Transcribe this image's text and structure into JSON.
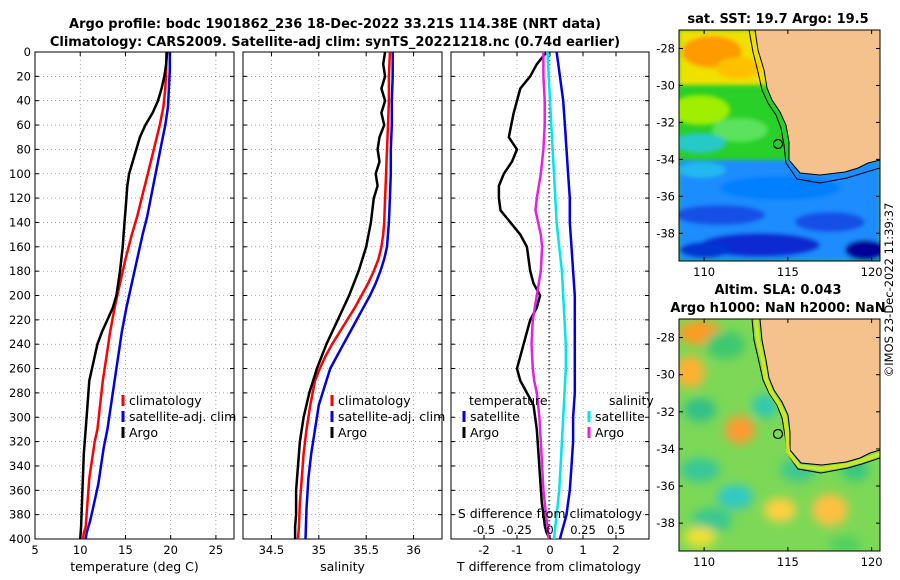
{
  "title_line1": "Argo profile: bodc 1901862_236 18-Dec-2022 33.21S 114.38E (NRT data)",
  "title_line2": "Climatology: CARS2009. Satellite-adj clim: synTS_20221218.nc (0.74d earlier)",
  "depth_ticks": [
    0,
    20,
    40,
    60,
    80,
    100,
    120,
    140,
    160,
    180,
    200,
    220,
    240,
    260,
    280,
    300,
    320,
    340,
    360,
    380,
    400
  ],
  "colors": {
    "argo": "#000000",
    "clim": "#ff0000",
    "sat": "#0000e6",
    "sat_s": "#00e5ee",
    "argo_s": "#e61ee6"
  },
  "chart_data": [
    {
      "type": "line",
      "name": "temperature",
      "xlabel": "temperature (deg C)",
      "xlim": [
        5,
        27
      ],
      "xticks": [
        5,
        10,
        15,
        20,
        25
      ],
      "ylim": [
        400,
        0
      ],
      "legend": [
        "climatology",
        "satellite-adj. clim",
        "Argo"
      ],
      "series": [
        {
          "name": "climatology",
          "color": "#ff0000",
          "x": [
            19.5,
            19.5,
            19.4,
            19.2,
            18.8,
            18.3,
            17.8,
            17.3,
            16.8,
            16.3,
            15.7,
            15.0,
            14.4,
            13.8,
            13.3,
            12.9,
            12.5,
            12.2,
            11.9,
            11.6,
            11.4,
            11.2,
            11.0,
            10.9,
            10.8,
            10.7,
            10.6,
            10.4,
            10.3
          ],
          "y": [
            0,
            15,
            30,
            45,
            60,
            75,
            90,
            105,
            120,
            135,
            150,
            170,
            190,
            210,
            230,
            250,
            270,
            290,
            310,
            320,
            330,
            340,
            350,
            360,
            370,
            380,
            390,
            395,
            400
          ]
        },
        {
          "name": "satellite-adj. clim",
          "color": "#0000e6",
          "x": [
            19.9,
            19.9,
            19.8,
            19.7,
            19.4,
            19.0,
            18.6,
            18.2,
            17.8,
            17.4,
            16.9,
            16.3,
            15.7,
            15.1,
            14.6,
            14.2,
            13.8,
            13.4,
            13.0,
            12.6,
            12.3,
            12.0,
            11.7,
            11.4,
            11.1,
            10.9,
            10.7,
            10.6
          ],
          "y": [
            0,
            15,
            30,
            45,
            60,
            75,
            90,
            105,
            120,
            135,
            150,
            170,
            190,
            210,
            230,
            250,
            270,
            290,
            310,
            325,
            340,
            355,
            365,
            375,
            385,
            390,
            395,
            400
          ]
        },
        {
          "name": "Argo",
          "color": "#000000",
          "x": [
            19.6,
            19.5,
            19.3,
            19.0,
            18.6,
            18.0,
            17.2,
            16.6,
            16.2,
            15.8,
            15.4,
            15.2,
            15.1,
            15.0,
            14.9,
            14.7,
            14.4,
            14.0,
            13.6,
            13.0,
            12.4,
            11.9,
            11.6,
            11.3,
            11.0,
            10.8,
            10.6,
            10.4,
            10.3,
            10.2,
            10.1,
            10.0
          ],
          "y": [
            0,
            10,
            20,
            30,
            40,
            50,
            60,
            70,
            80,
            90,
            100,
            110,
            120,
            130,
            140,
            160,
            180,
            200,
            210,
            220,
            230,
            240,
            250,
            260,
            270,
            290,
            310,
            330,
            350,
            370,
            390,
            400
          ]
        }
      ]
    },
    {
      "type": "line",
      "name": "salinity",
      "xlabel": "salinity",
      "xlim": [
        34.2,
        36.3
      ],
      "xticks": [
        34.5,
        35,
        35.5,
        36
      ],
      "xtick_labels": [
        "34.5",
        "35",
        "35.5",
        "36"
      ],
      "ylim": [
        400,
        0
      ],
      "legend": [
        "climatology",
        "satellite-adj. clim",
        "Argo"
      ],
      "series": [
        {
          "name": "climatology",
          "color": "#ff0000",
          "x": [
            35.75,
            35.74,
            35.74,
            35.73,
            35.72,
            35.71,
            35.7,
            35.69,
            35.68,
            35.66,
            35.63,
            35.58,
            35.52,
            35.45,
            35.38,
            35.3,
            35.22,
            35.14,
            35.07,
            35.01,
            34.96,
            34.91,
            34.87,
            34.84,
            34.82,
            34.8,
            34.79,
            34.78
          ],
          "y": [
            0,
            20,
            40,
            60,
            80,
            100,
            120,
            140,
            150,
            160,
            170,
            180,
            190,
            200,
            210,
            220,
            230,
            240,
            250,
            260,
            270,
            290,
            310,
            330,
            350,
            370,
            390,
            400
          ]
        },
        {
          "name": "satellite-adj. clim",
          "color": "#0000e6",
          "x": [
            35.78,
            35.78,
            35.77,
            35.77,
            35.76,
            35.76,
            35.75,
            35.74,
            35.72,
            35.69,
            35.65,
            35.6,
            35.54,
            35.47,
            35.4,
            35.33,
            35.26,
            35.19,
            35.12,
            35.06,
            35.0,
            34.96,
            34.92,
            34.89,
            34.87,
            34.86
          ],
          "y": [
            0,
            20,
            40,
            60,
            80,
            100,
            120,
            140,
            160,
            170,
            180,
            190,
            200,
            210,
            220,
            230,
            240,
            250,
            260,
            275,
            290,
            310,
            330,
            350,
            375,
            400
          ]
        },
        {
          "name": "Argo",
          "color": "#000000",
          "x": [
            35.7,
            35.68,
            35.7,
            35.66,
            35.7,
            35.66,
            35.69,
            35.64,
            35.62,
            35.64,
            35.6,
            35.62,
            35.58,
            35.55,
            35.5,
            35.42,
            35.32,
            35.2,
            35.08,
            34.98,
            34.9,
            34.84,
            34.8,
            34.78,
            34.76,
            34.76,
            34.75,
            34.75
          ],
          "y": [
            0,
            10,
            20,
            30,
            40,
            50,
            60,
            70,
            80,
            90,
            100,
            110,
            120,
            140,
            160,
            180,
            200,
            220,
            240,
            260,
            280,
            300,
            320,
            340,
            360,
            380,
            390,
            400
          ]
        }
      ]
    },
    {
      "type": "line",
      "name": "difference from climatology",
      "xlabel": "T difference from climatology",
      "xlim": [
        -3,
        3
      ],
      "xticks": [
        -2,
        -1,
        0,
        1,
        2
      ],
      "xtick_labels": [
        "-2",
        "-1",
        "0",
        "1",
        "2"
      ],
      "top_axis_label": "S difference from climatology",
      "top_ticks": [
        -0.5,
        -0.25,
        0,
        0.25,
        0.5
      ],
      "top_tick_labels": [
        "-0.5",
        "-0.25",
        "0",
        "0.25",
        "0.5"
      ],
      "ylim": [
        400,
        0
      ],
      "legend_left_title": "temperature",
      "legend_right_title": "salinity",
      "legend": [
        "satellite",
        "Argo",
        "satellite",
        "Argo"
      ],
      "series": [
        {
          "name": "T satellite",
          "color": "#0000e6",
          "x": [
            0.2,
            0.25,
            0.3,
            0.4,
            0.45,
            0.5,
            0.55,
            0.6,
            0.6,
            0.65,
            0.7,
            0.75,
            0.75,
            0.75,
            0.75,
            0.75,
            0.7,
            0.7,
            0.65,
            0.6,
            0.55,
            0.5,
            0.45,
            0.4,
            0.35,
            0.3
          ],
          "y": [
            0,
            10,
            20,
            40,
            60,
            80,
            100,
            120,
            140,
            160,
            180,
            200,
            220,
            240,
            260,
            280,
            300,
            320,
            340,
            360,
            370,
            380,
            385,
            390,
            395,
            400
          ]
        },
        {
          "name": "T Argo",
          "color": "#000000",
          "x": [
            -0.1,
            -0.4,
            -0.6,
            -0.9,
            -1.1,
            -1.25,
            -1.0,
            -1.15,
            -1.4,
            -1.55,
            -1.55,
            -1.5,
            -1.2,
            -0.9,
            -0.7,
            -0.6,
            -0.5,
            -0.3,
            -0.4,
            -0.6,
            -0.8,
            -1.0,
            -0.9,
            -0.7,
            -0.5,
            -0.4,
            -0.35,
            -0.3,
            -0.25,
            -0.2,
            -0.15,
            -0.1,
            0.0
          ],
          "y": [
            0,
            10,
            20,
            30,
            50,
            70,
            80,
            90,
            100,
            110,
            120,
            130,
            140,
            150,
            160,
            180,
            190,
            200,
            210,
            220,
            240,
            260,
            270,
            280,
            290,
            310,
            330,
            350,
            370,
            380,
            390,
            395,
            400
          ]
        },
        {
          "name": "S satellite",
          "color": "#00e5ee",
          "x": [
            -0.02,
            -0.01,
            0,
            0.01,
            0.02,
            0.03,
            0.04,
            0.05,
            0.07,
            0.09,
            0.1,
            0.11,
            0.12,
            0.12,
            0.11,
            0.1,
            0.09,
            0.08,
            0.07,
            0.06,
            0.05,
            0.04,
            0.03
          ],
          "y": [
            0,
            20,
            40,
            60,
            80,
            100,
            120,
            140,
            160,
            180,
            200,
            220,
            240,
            260,
            280,
            300,
            320,
            340,
            360,
            370,
            380,
            390,
            400
          ]
        },
        {
          "name": "S Argo",
          "color": "#e61ee6",
          "x": [
            -0.05,
            -0.05,
            -0.04,
            -0.04,
            -0.05,
            -0.07,
            -0.1,
            -0.11,
            -0.09,
            -0.07,
            -0.06,
            -0.07,
            -0.1,
            -0.13,
            -0.14,
            -0.13,
            -0.12,
            -0.1,
            -0.09,
            -0.08,
            -0.07,
            -0.06,
            -0.05,
            -0.04,
            -0.03,
            -0.02,
            -0.01
          ],
          "y": [
            0,
            20,
            40,
            60,
            80,
            100,
            120,
            130,
            140,
            150,
            160,
            180,
            200,
            220,
            240,
            260,
            270,
            280,
            290,
            300,
            320,
            340,
            360,
            370,
            380,
            390,
            400
          ]
        }
      ]
    },
    {
      "type": "heatmap",
      "name": "sst-map",
      "title": "sat. SST: 19.7 Argo: 19.5",
      "xticks": [
        110,
        115,
        120
      ],
      "yticks": [
        -28,
        -30,
        -32,
        -34,
        -36,
        -38
      ],
      "xlim": [
        108.5,
        120.5
      ],
      "ylim": [
        -39.5,
        -27
      ]
    },
    {
      "type": "heatmap",
      "name": "sla-map",
      "title_line1": "Altim. SLA: 0.043",
      "title_line2": "Argo h1000: NaN h2000: NaN",
      "xticks": [
        110,
        115,
        120
      ],
      "yticks": [
        -28,
        -30,
        -32,
        -34,
        -36,
        -38
      ],
      "xlim": [
        108.5,
        120.5
      ],
      "ylim": [
        -39.5,
        -27
      ]
    }
  ],
  "watermark": "©IMOS 23-Dec-2022 11:39:37"
}
